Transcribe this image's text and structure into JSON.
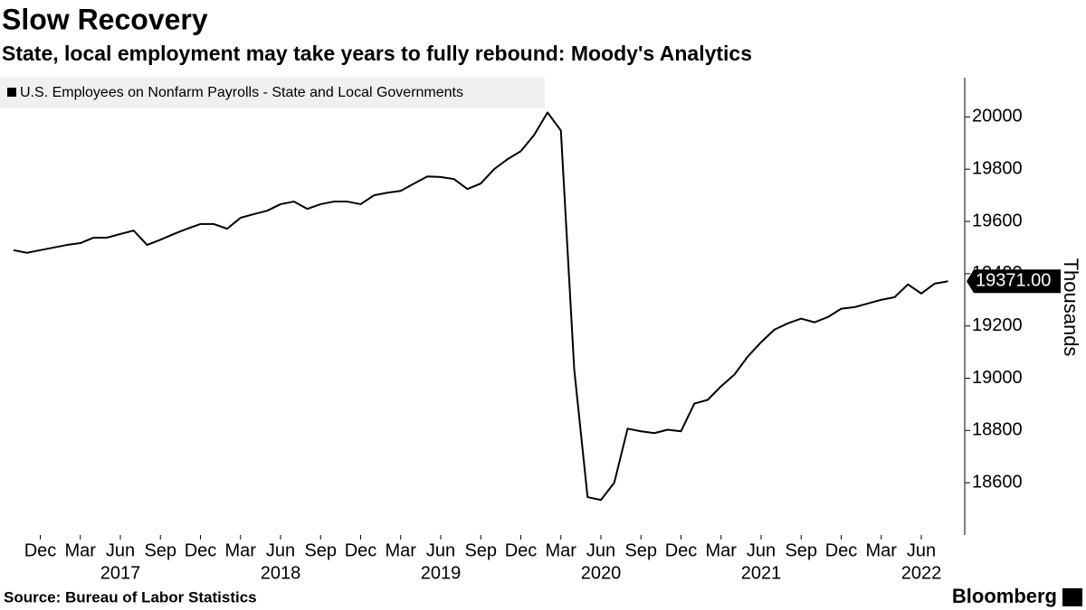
{
  "chart_data": {
    "type": "line",
    "title": "Slow Recovery",
    "subtitle": "State, local employment may take years to fully rebound: Moody's Analytics",
    "y_label": "Thousands",
    "source": "Source: Bureau of Labor Statistics",
    "brand": "Bloomberg",
    "x": [
      "2016-10",
      "2016-11",
      "2016-12",
      "2017-01",
      "2017-02",
      "2017-03",
      "2017-04",
      "2017-05",
      "2017-06",
      "2017-07",
      "2017-08",
      "2017-09",
      "2017-10",
      "2017-11",
      "2017-12",
      "2018-01",
      "2018-02",
      "2018-03",
      "2018-04",
      "2018-05",
      "2018-06",
      "2018-07",
      "2018-08",
      "2018-09",
      "2018-10",
      "2018-11",
      "2018-12",
      "2019-01",
      "2019-02",
      "2019-03",
      "2019-04",
      "2019-05",
      "2019-06",
      "2019-07",
      "2019-08",
      "2019-09",
      "2019-10",
      "2019-11",
      "2019-12",
      "2020-01",
      "2020-02",
      "2020-03",
      "2020-04",
      "2020-05",
      "2020-06",
      "2020-07",
      "2020-08",
      "2020-09",
      "2020-10",
      "2020-11",
      "2020-12",
      "2021-01",
      "2021-02",
      "2021-03",
      "2021-04",
      "2021-05",
      "2021-06",
      "2021-07",
      "2021-08",
      "2021-09",
      "2021-10",
      "2021-11",
      "2021-12",
      "2022-01",
      "2022-02",
      "2022-03",
      "2022-04",
      "2022-05",
      "2022-06",
      "2022-07",
      "2022-08"
    ],
    "series": [
      {
        "name": "U.S. Employees on Nonfarm Payrolls - State and Local Governments",
        "color": "#000000",
        "values": [
          19490,
          19480,
          19490,
          19500,
          19510,
          19517,
          19538,
          19538,
          19552,
          19565,
          19510,
          19530,
          19552,
          19572,
          19590,
          19590,
          19572,
          19614,
          19628,
          19641,
          19666,
          19676,
          19648,
          19666,
          19676,
          19676,
          19666,
          19700,
          19710,
          19717,
          19745,
          19772,
          19770,
          19762,
          19724,
          19745,
          19800,
          19838,
          19869,
          19931,
          20017,
          19948,
          19034,
          18545,
          18534,
          18600,
          18807,
          18797,
          18790,
          18803,
          18797,
          18903,
          18917,
          18969,
          19014,
          19083,
          19138,
          19186,
          19210,
          19228,
          19214,
          19234,
          19266,
          19272,
          19286,
          19300,
          19310,
          19359,
          19324,
          19362,
          19371
        ],
        "value_labels": [
          null,
          null,
          null,
          null,
          null,
          null,
          null,
          null,
          null,
          null,
          null,
          null,
          null,
          null,
          null,
          null,
          null,
          null,
          null,
          null,
          null,
          null,
          null,
          null,
          null,
          null,
          null,
          null,
          null,
          null,
          null,
          null,
          null,
          null,
          null,
          null,
          null,
          null,
          null,
          null,
          null,
          null,
          null,
          null,
          null,
          null,
          null,
          null,
          null,
          null,
          null,
          null,
          null,
          null,
          null,
          null,
          null,
          null,
          null,
          null,
          null,
          null,
          null,
          null,
          null,
          null,
          null,
          null,
          null,
          null,
          "19371.00"
        ]
      }
    ],
    "ylim": [
      18400,
      20150
    ],
    "yticks": [
      18600,
      18800,
      19000,
      19200,
      19400,
      19600,
      19800,
      20000
    ],
    "xticks": [
      {
        "value": "2016-12",
        "label": "Dec"
      },
      {
        "value": "2017-03",
        "label": "Mar"
      },
      {
        "value": "2017-06",
        "label": "Jun"
      },
      {
        "value": "2017-09",
        "label": "Sep"
      },
      {
        "value": "2017-12",
        "label": "Dec"
      },
      {
        "value": "2018-03",
        "label": "Mar"
      },
      {
        "value": "2018-06",
        "label": "Jun"
      },
      {
        "value": "2018-09",
        "label": "Sep"
      },
      {
        "value": "2018-12",
        "label": "Dec"
      },
      {
        "value": "2019-03",
        "label": "Mar"
      },
      {
        "value": "2019-06",
        "label": "Jun"
      },
      {
        "value": "2019-09",
        "label": "Sep"
      },
      {
        "value": "2019-12",
        "label": "Dec"
      },
      {
        "value": "2020-03",
        "label": "Mar"
      },
      {
        "value": "2020-06",
        "label": "Jun"
      },
      {
        "value": "2020-09",
        "label": "Sep"
      },
      {
        "value": "2020-12",
        "label": "Dec"
      },
      {
        "value": "2021-03",
        "label": "Mar"
      },
      {
        "value": "2021-06",
        "label": "Jun"
      },
      {
        "value": "2021-09",
        "label": "Sep"
      },
      {
        "value": "2021-12",
        "label": "Dec"
      },
      {
        "value": "2022-03",
        "label": "Mar"
      },
      {
        "value": "2022-06",
        "label": "Jun"
      }
    ],
    "x_year_labels": [
      {
        "value": "2017-06",
        "label": "2017"
      },
      {
        "value": "2018-06",
        "label": "2018"
      },
      {
        "value": "2019-06",
        "label": "2019"
      },
      {
        "value": "2020-06",
        "label": "2020"
      },
      {
        "value": "2021-06",
        "label": "2021"
      },
      {
        "value": "2022-06",
        "label": "2022"
      }
    ],
    "grid": false
  }
}
